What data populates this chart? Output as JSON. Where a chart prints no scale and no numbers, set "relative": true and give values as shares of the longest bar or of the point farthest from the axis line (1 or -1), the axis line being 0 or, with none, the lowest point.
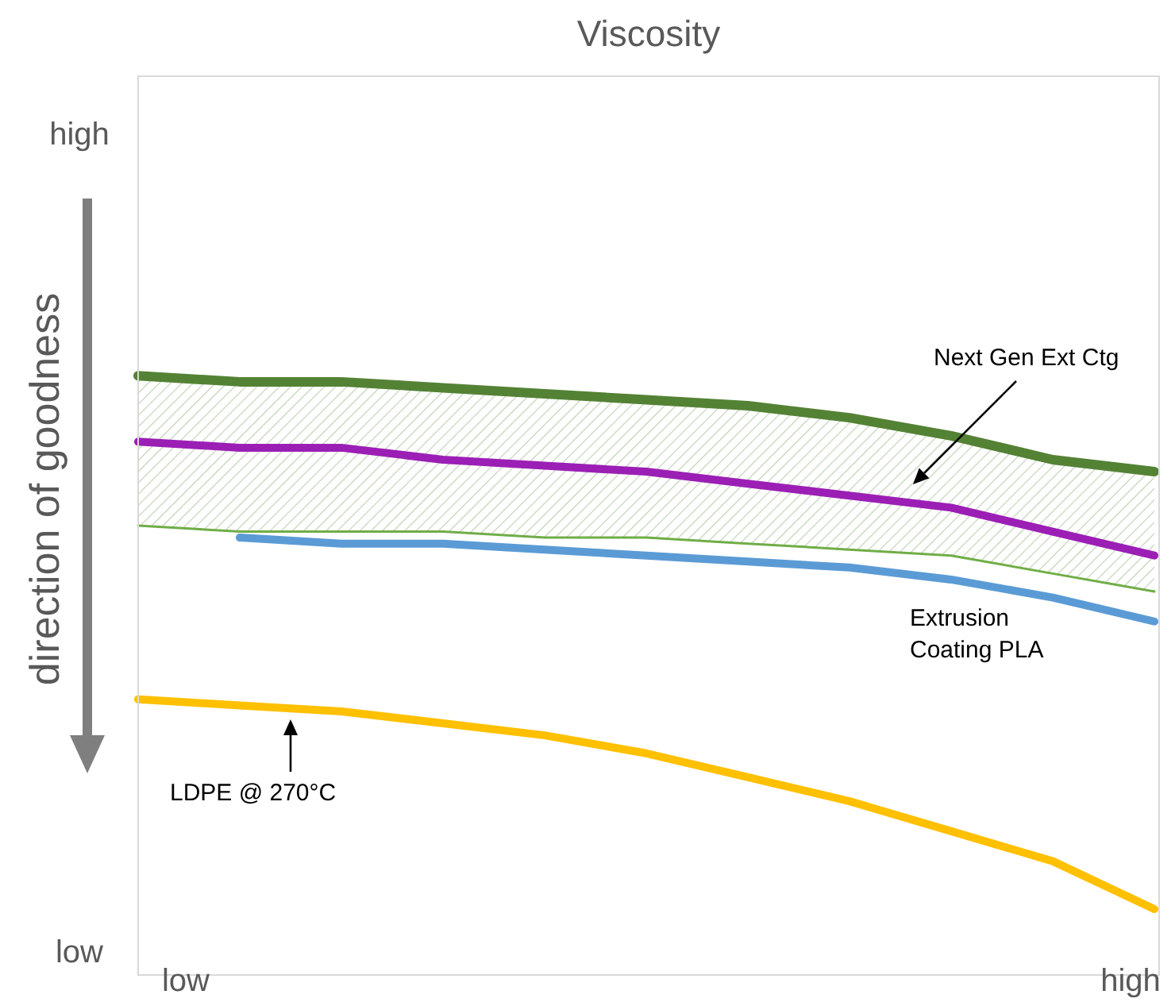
{
  "chart_data": {
    "type": "line",
    "title": "Viscosity",
    "ylabel": "direction of goodness",
    "relative": true,
    "categories": [
      null,
      null,
      null,
      null,
      null,
      null,
      null,
      null,
      null,
      null,
      null
    ],
    "series": [
      {
        "color": "#548235",
        "values": [
          1.0,
          0.99,
          0.99,
          0.98,
          0.97,
          0.96,
          0.95,
          0.93,
          0.9,
          0.86,
          0.84
        ],
        "upper": [
          1.0,
          0.99,
          0.99,
          0.98,
          0.97,
          0.96,
          0.95,
          0.93,
          0.9,
          0.86,
          0.84
        ],
        "lower": [
          0.75,
          0.74,
          0.74,
          0.74,
          0.73,
          0.73,
          0.72,
          0.71,
          0.7,
          0.67,
          0.64
        ]
      },
      {
        "color": "#70ad47",
        "values": [
          0.75,
          0.74,
          0.74,
          0.74,
          0.73,
          0.73,
          0.72,
          0.71,
          0.7,
          0.67,
          0.64
        ]
      },
      {
        "color": "#9b1fb5",
        "values": [
          0.89,
          0.88,
          0.88,
          0.86,
          0.85,
          0.84,
          0.82,
          0.8,
          0.78,
          0.74,
          0.7
        ]
      },
      {
        "color": "#5b9bd5",
        "values": [
          null,
          0.73,
          0.72,
          0.72,
          0.71,
          0.7,
          0.69,
          0.68,
          0.66,
          0.63,
          0.59
        ]
      },
      {
        "color": "#ffc000",
        "values": [
          0.46,
          0.45,
          0.44,
          0.42,
          0.4,
          0.37,
          0.33,
          0.29,
          0.24,
          0.19,
          0.11
        ]
      }
    ],
    "annotations": [
      "Next Gen Ext Ctg",
      "Extrusion Coating PLA",
      "LDPE @ 270°C",
      "high",
      "low",
      "low",
      "high"
    ],
    "grid": false,
    "legend": false,
    "marker": "none",
    "line_style": "solid"
  }
}
